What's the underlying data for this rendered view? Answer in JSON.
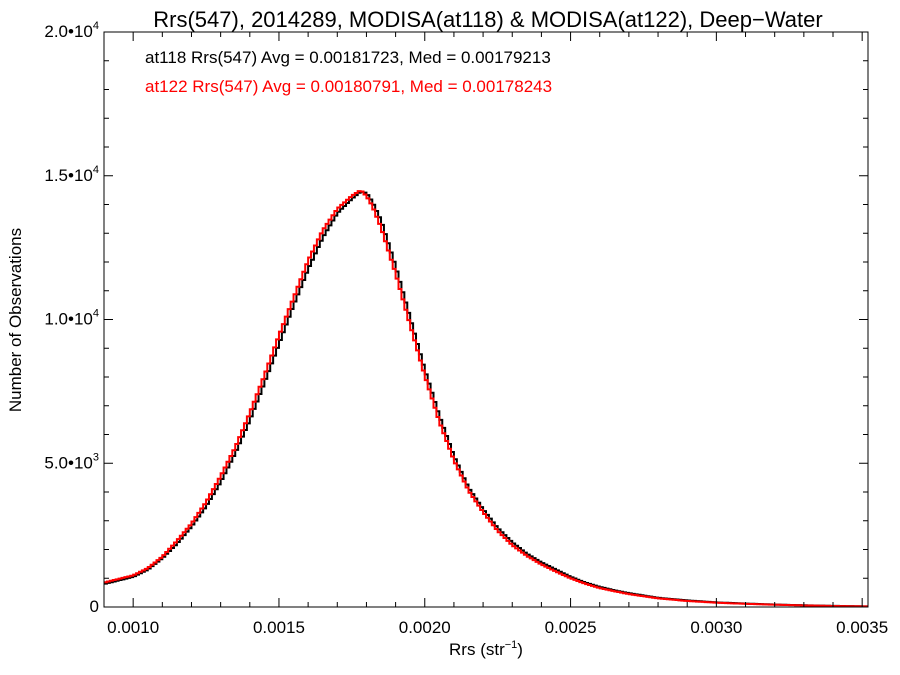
{
  "chart_data": {
    "type": "line",
    "title": "Rrs(547), 2014289, MODISA(at118) & MODISA(at122), Deep−Water",
    "xlabel_main": "Rrs (str",
    "xlabel_sup": "−1",
    "xlabel_close": ")",
    "ylabel": "Number of Observations",
    "xlim": [
      0.0009,
      0.00352
    ],
    "ylim": [
      0,
      20000
    ],
    "x_ticks": [
      {
        "value": 0.001,
        "label": "0.0010"
      },
      {
        "value": 0.0015,
        "label": "0.0015"
      },
      {
        "value": 0.002,
        "label": "0.0020"
      },
      {
        "value": 0.0025,
        "label": "0.0025"
      },
      {
        "value": 0.003,
        "label": "0.0030"
      },
      {
        "value": 0.0035,
        "label": "0.0035"
      }
    ],
    "y_ticks": [
      {
        "value": 0,
        "mant": "0",
        "exp": ""
      },
      {
        "value": 5000,
        "mant": "5.0•10",
        "exp": "3"
      },
      {
        "value": 10000,
        "mant": "1.0•10",
        "exp": "4"
      },
      {
        "value": 15000,
        "mant": "1.5•10",
        "exp": "4"
      },
      {
        "value": 20000,
        "mant": "2.0•10",
        "exp": "4"
      }
    ],
    "annotations": [
      {
        "text": "at118 Rrs(547) Avg = 0.00181723, Med = 0.00179213",
        "color": "#000000"
      },
      {
        "text": "at122 Rrs(547) Avg = 0.00180791, Med = 0.00178243",
        "color": "#ff0000"
      }
    ],
    "series": [
      {
        "color": "#000000",
        "x": [
          0.0009,
          0.001,
          0.00105,
          0.0011,
          0.00115,
          0.0012,
          0.00125,
          0.0013,
          0.00135,
          0.0014,
          0.00145,
          0.0015,
          0.00155,
          0.0016,
          0.00165,
          0.0017,
          0.00175,
          0.00178,
          0.0018,
          0.00182,
          0.00185,
          0.0019,
          0.00195,
          0.002,
          0.00205,
          0.0021,
          0.00215,
          0.0022,
          0.00225,
          0.0023,
          0.00235,
          0.0024,
          0.00245,
          0.0025,
          0.00255,
          0.0026,
          0.00265,
          0.0027,
          0.0028,
          0.0029,
          0.003,
          0.0031,
          0.0032,
          0.0033,
          0.0034,
          0.00352
        ],
        "y": [
          800,
          1050,
          1300,
          1700,
          2200,
          2800,
          3500,
          4350,
          5350,
          6500,
          7800,
          9150,
          10500,
          11750,
          12850,
          13700,
          14200,
          14450,
          14400,
          14100,
          13450,
          11850,
          10050,
          8250,
          6650,
          5250,
          4150,
          3400,
          2750,
          2250,
          1850,
          1550,
          1300,
          1050,
          850,
          700,
          580,
          480,
          320,
          230,
          160,
          120,
          85,
          60,
          40,
          20
        ]
      },
      {
        "color": "#ff0000",
        "x": [
          0.0009,
          0.001,
          0.00105,
          0.0011,
          0.00115,
          0.0012,
          0.00125,
          0.0013,
          0.00135,
          0.0014,
          0.00145,
          0.0015,
          0.00155,
          0.0016,
          0.00165,
          0.0017,
          0.00175,
          0.00178,
          0.0018,
          0.00182,
          0.00185,
          0.0019,
          0.00195,
          0.002,
          0.00205,
          0.0021,
          0.00215,
          0.0022,
          0.00225,
          0.0023,
          0.00235,
          0.0024,
          0.00245,
          0.0025,
          0.00255,
          0.0026,
          0.00265,
          0.0027,
          0.0028,
          0.0029,
          0.003,
          0.0031,
          0.0032,
          0.0033,
          0.0034,
          0.00352
        ],
        "y": [
          850,
          1100,
          1350,
          1750,
          2300,
          2900,
          3650,
          4550,
          5550,
          6750,
          8050,
          9450,
          10750,
          12050,
          13100,
          13850,
          14300,
          14500,
          14300,
          13950,
          13200,
          11600,
          9800,
          8050,
          6450,
          5100,
          4050,
          3300,
          2650,
          2150,
          1780,
          1480,
          1230,
          1000,
          810,
          660,
          550,
          450,
          300,
          210,
          150,
          110,
          80,
          55,
          35,
          20
        ]
      }
    ]
  }
}
